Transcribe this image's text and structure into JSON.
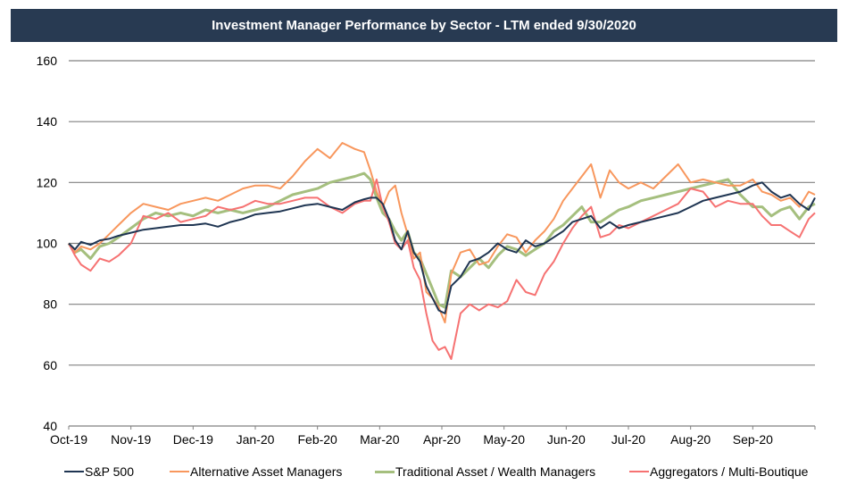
{
  "chart_data": {
    "type": "line",
    "title": "Investment Manager Performance by Sector - LTM ended 9/30/2020",
    "xlabel": "",
    "ylabel": "",
    "ylim": [
      40,
      160
    ],
    "yticks": [
      40,
      60,
      80,
      100,
      120,
      140,
      160
    ],
    "xlim": [
      0,
      12
    ],
    "xtick_labels": [
      "Oct-19",
      "Nov-19",
      "Dec-19",
      "Jan-20",
      "Feb-20",
      "Mar-20",
      "Apr-20",
      "May-20",
      "Jun-20",
      "Jul-20",
      "Aug-20",
      "Sep-20"
    ],
    "grid": "horizontal",
    "legend_position": "bottom",
    "x_units": "months since Oct-19",
    "series": [
      {
        "name": "S&P 500",
        "color": "#1f3552",
        "x": [
          0,
          0.1,
          0.2,
          0.35,
          0.5,
          0.65,
          0.8,
          1.0,
          1.2,
          1.4,
          1.6,
          1.8,
          2.0,
          2.2,
          2.4,
          2.6,
          2.8,
          3.0,
          3.2,
          3.4,
          3.6,
          3.8,
          4.0,
          4.2,
          4.4,
          4.6,
          4.75,
          4.85,
          4.95,
          5.05,
          5.15,
          5.25,
          5.35,
          5.45,
          5.55,
          5.65,
          5.75,
          5.85,
          5.95,
          6.05,
          6.15,
          6.3,
          6.45,
          6.6,
          6.75,
          6.9,
          7.05,
          7.2,
          7.35,
          7.5,
          7.65,
          7.8,
          7.95,
          8.1,
          8.25,
          8.4,
          8.55,
          8.7,
          8.85,
          9.0,
          9.2,
          9.4,
          9.6,
          9.8,
          10.0,
          10.2,
          10.4,
          10.6,
          10.8,
          11.0,
          11.15,
          11.3,
          11.45,
          11.6,
          11.75,
          11.9,
          12.0
        ],
        "values": [
          100,
          98,
          100.5,
          99.5,
          101,
          101.5,
          102.5,
          103.5,
          104.5,
          105,
          105.5,
          106,
          106,
          106.5,
          105.5,
          107,
          108,
          109.5,
          110,
          110.5,
          111.5,
          112.5,
          113,
          112,
          111,
          113.5,
          114.5,
          115,
          115,
          113,
          108,
          101,
          98,
          104,
          97,
          94,
          86,
          82,
          78,
          77,
          86,
          89,
          94,
          95,
          97,
          100,
          98,
          97,
          101,
          99,
          100,
          102,
          104,
          107,
          108,
          109,
          105,
          107,
          105,
          106,
          107,
          108,
          109,
          110,
          112,
          114,
          115,
          116,
          117,
          119,
          120,
          117,
          115,
          116,
          113,
          111,
          115
        ],
        "stroke_width": 2
      },
      {
        "name": "Alternative Asset Managers",
        "color": "#f8975d",
        "x": [
          0,
          0.1,
          0.2,
          0.35,
          0.5,
          0.65,
          0.8,
          1.0,
          1.2,
          1.4,
          1.6,
          1.8,
          2.0,
          2.2,
          2.4,
          2.6,
          2.8,
          3.0,
          3.2,
          3.4,
          3.6,
          3.8,
          4.0,
          4.2,
          4.4,
          4.6,
          4.75,
          4.85,
          4.95,
          5.05,
          5.15,
          5.25,
          5.35,
          5.45,
          5.55,
          5.65,
          5.75,
          5.85,
          5.95,
          6.05,
          6.15,
          6.3,
          6.45,
          6.6,
          6.75,
          6.9,
          7.05,
          7.2,
          7.35,
          7.5,
          7.65,
          7.8,
          7.95,
          8.1,
          8.25,
          8.4,
          8.55,
          8.7,
          8.85,
          9.0,
          9.2,
          9.4,
          9.6,
          9.8,
          10.0,
          10.2,
          10.4,
          10.6,
          10.8,
          11.0,
          11.15,
          11.3,
          11.45,
          11.6,
          11.75,
          11.9,
          12.0
        ],
        "values": [
          100,
          97,
          99,
          98,
          100,
          103,
          106,
          110,
          113,
          112,
          111,
          113,
          114,
          115,
          114,
          116,
          118,
          119,
          119,
          118,
          122,
          127,
          131,
          128,
          133,
          131,
          130,
          124,
          117,
          112,
          117,
          119,
          110,
          103,
          95,
          97,
          84,
          82,
          79,
          74,
          90,
          97,
          98,
          93,
          94,
          99,
          103,
          102,
          97,
          101,
          104,
          108,
          114,
          118,
          122,
          126,
          115,
          124,
          120,
          118,
          120,
          118,
          122,
          126,
          120,
          121,
          120,
          119,
          119,
          121,
          117,
          116,
          114,
          115,
          112,
          117,
          116
        ],
        "stroke_width": 2
      },
      {
        "name": "Traditional Asset / Wealth Managers",
        "color": "#a5bf7e",
        "x": [
          0,
          0.1,
          0.2,
          0.35,
          0.5,
          0.65,
          0.8,
          1.0,
          1.2,
          1.4,
          1.6,
          1.8,
          2.0,
          2.2,
          2.4,
          2.6,
          2.8,
          3.0,
          3.2,
          3.4,
          3.6,
          3.8,
          4.0,
          4.2,
          4.4,
          4.6,
          4.75,
          4.85,
          4.95,
          5.05,
          5.15,
          5.25,
          5.35,
          5.45,
          5.55,
          5.65,
          5.75,
          5.85,
          5.95,
          6.05,
          6.15,
          6.3,
          6.45,
          6.6,
          6.75,
          6.9,
          7.05,
          7.2,
          7.35,
          7.5,
          7.65,
          7.8,
          7.95,
          8.1,
          8.25,
          8.4,
          8.55,
          8.7,
          8.85,
          9.0,
          9.2,
          9.4,
          9.6,
          9.8,
          10.0,
          10.2,
          10.4,
          10.6,
          10.8,
          11.0,
          11.15,
          11.3,
          11.45,
          11.6,
          11.75,
          11.9,
          12.0
        ],
        "values": [
          100,
          97,
          98,
          95,
          99,
          100,
          102,
          105,
          108,
          110,
          109,
          110,
          109,
          111,
          110,
          111,
          110,
          111,
          112,
          114,
          116,
          117,
          118,
          120,
          121,
          122,
          123,
          121,
          115,
          110,
          108,
          104,
          101,
          104,
          97,
          95,
          90,
          85,
          80,
          79,
          91,
          89,
          92,
          95,
          92,
          96,
          99,
          98,
          96,
          98,
          100,
          104,
          106,
          109,
          112,
          107,
          107,
          109,
          111,
          112,
          114,
          115,
          116,
          117,
          118,
          119,
          120,
          121,
          116,
          112,
          112,
          109,
          111,
          112,
          108,
          112,
          113
        ],
        "stroke_width": 3
      },
      {
        "name": "Aggregators / Multi-Boutique",
        "color": "#f67272",
        "x": [
          0,
          0.1,
          0.2,
          0.35,
          0.5,
          0.65,
          0.8,
          1.0,
          1.2,
          1.4,
          1.6,
          1.8,
          2.0,
          2.2,
          2.4,
          2.6,
          2.8,
          3.0,
          3.2,
          3.4,
          3.6,
          3.8,
          4.0,
          4.2,
          4.4,
          4.6,
          4.75,
          4.85,
          4.95,
          5.05,
          5.15,
          5.25,
          5.35,
          5.45,
          5.55,
          5.65,
          5.75,
          5.85,
          5.95,
          6.05,
          6.15,
          6.3,
          6.45,
          6.6,
          6.75,
          6.9,
          7.05,
          7.2,
          7.35,
          7.5,
          7.65,
          7.8,
          7.95,
          8.1,
          8.25,
          8.4,
          8.55,
          8.7,
          8.85,
          9.0,
          9.2,
          9.4,
          9.6,
          9.8,
          10.0,
          10.2,
          10.4,
          10.6,
          10.8,
          11.0,
          11.15,
          11.3,
          11.45,
          11.6,
          11.75,
          11.9,
          12.0
        ],
        "values": [
          100,
          96,
          93,
          91,
          95,
          94,
          96,
          100,
          109,
          108,
          110,
          107,
          108,
          109,
          112,
          111,
          112,
          114,
          113,
          113,
          114,
          115,
          115,
          112,
          110,
          113,
          114,
          114,
          121,
          112,
          107,
          100,
          98,
          101,
          92,
          88,
          77,
          68,
          65,
          66,
          62,
          77,
          80,
          78,
          80,
          79,
          81,
          88,
          84,
          83,
          90,
          94,
          100,
          105,
          109,
          112,
          102,
          103,
          106,
          105,
          107,
          109,
          111,
          113,
          118,
          117,
          112,
          114,
          113,
          113,
          109,
          106,
          106,
          104,
          102,
          108,
          110
        ],
        "stroke_width": 2
      }
    ]
  },
  "legend": {
    "items": [
      {
        "label": "S&P 500",
        "color": "#1f3552"
      },
      {
        "label": "Alternative Asset Managers",
        "color": "#f8975d"
      },
      {
        "label": "Traditional Asset / Wealth Managers",
        "color": "#a5bf7e"
      },
      {
        "label": "Aggregators / Multi-Boutique",
        "color": "#f67272"
      }
    ]
  }
}
